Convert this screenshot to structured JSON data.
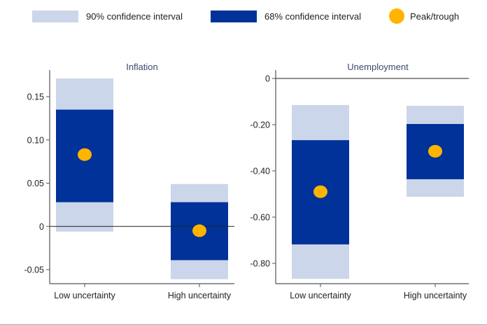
{
  "legend": {
    "items": [
      {
        "label": "90% confidence interval",
        "kind": "rect",
        "color": "#cbd6ea"
      },
      {
        "label": "68% confidence interval",
        "kind": "rect",
        "color": "#003299"
      },
      {
        "label": "Peak/trough",
        "kind": "dot",
        "color": "#ffb400"
      }
    ]
  },
  "colors": {
    "ci90": "#cbd6ea",
    "ci68": "#003299",
    "peak": "#ffb400",
    "axis": "#555555",
    "title": "#3c4a6e",
    "tick_text": "#222222"
  },
  "chart_data": [
    {
      "type": "bar",
      "title": "Inflation",
      "xlabel": "",
      "ylabel": "",
      "categories": [
        "Low uncertainty",
        "High uncertainty"
      ],
      "ylim": [
        -0.062,
        0.18
      ],
      "yticks": [
        0.15,
        0.1,
        0.05,
        0,
        -0.05
      ],
      "ytick_labels": [
        "0.15",
        "0.10",
        "0.05",
        "0",
        "-0.05"
      ],
      "zero_line": true,
      "grid": false,
      "series": [
        {
          "name": "90% confidence interval",
          "low": [
            -0.006,
            -0.061
          ],
          "high": [
            0.171,
            0.049
          ]
        },
        {
          "name": "68% confidence interval",
          "low": [
            0.028,
            -0.039
          ],
          "high": [
            0.135,
            0.028
          ]
        },
        {
          "name": "Peak/trough",
          "values": [
            0.083,
            -0.005
          ]
        }
      ]
    },
    {
      "type": "bar",
      "title": "Unemployment",
      "xlabel": "",
      "ylabel": "",
      "categories": [
        "Low uncertainty",
        "High uncertainty"
      ],
      "ylim": [
        -0.88,
        0.0
      ],
      "yticks": [
        0,
        -0.2,
        -0.4,
        -0.6,
        -0.8
      ],
      "ytick_labels": [
        "0",
        "-0.20",
        "-0.40",
        "-0.60",
        "-0.80"
      ],
      "zero_line": true,
      "grid": false,
      "series": [
        {
          "name": "90% confidence interval",
          "low": [
            -0.867,
            -0.512
          ],
          "high": [
            -0.115,
            -0.118
          ]
        },
        {
          "name": "68% confidence interval",
          "low": [
            -0.718,
            -0.436
          ],
          "high": [
            -0.267,
            -0.197
          ]
        },
        {
          "name": "Peak/trough",
          "values": [
            -0.49,
            -0.315
          ]
        }
      ]
    }
  ]
}
